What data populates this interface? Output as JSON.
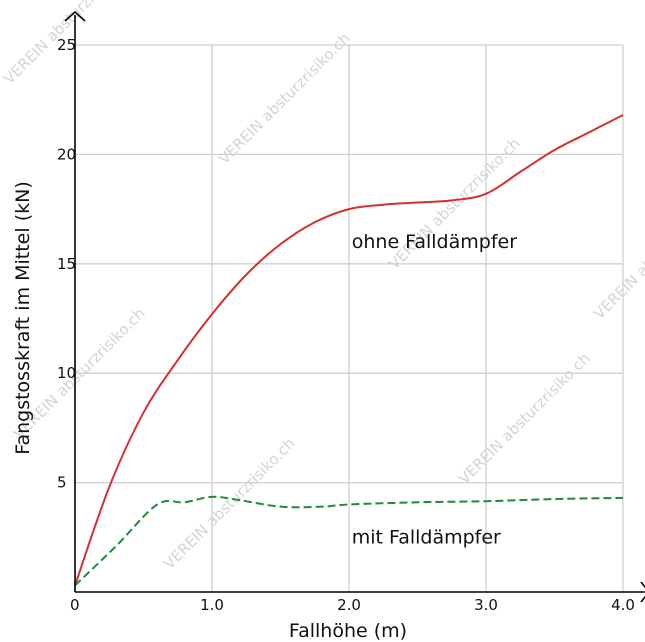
{
  "chart_data": {
    "type": "line",
    "title": "",
    "xlabel": "Fallhöhe (m)",
    "ylabel": "Fangstosskraft im Mittel (kN)",
    "xlim": [
      0,
      4.0
    ],
    "ylim": [
      0,
      25
    ],
    "x_ticks": [
      {
        "value": 0,
        "label": "0"
      },
      {
        "value": 1.0,
        "label": "1.0"
      },
      {
        "value": 2.0,
        "label": "2.0"
      },
      {
        "value": 3.0,
        "label": "3.0"
      },
      {
        "value": 4.0,
        "label": "4.0"
      }
    ],
    "y_ticks": [
      {
        "value": 5,
        "label": "5"
      },
      {
        "value": 10,
        "label": "10"
      },
      {
        "value": 15,
        "label": "15"
      },
      {
        "value": 20,
        "label": "20"
      },
      {
        "value": 25,
        "label": "25"
      }
    ],
    "grid": true,
    "series": [
      {
        "name": "ohne Falldämpfer",
        "color": "#d62f2f",
        "dash": "solid",
        "x": [
          0,
          0.25,
          0.5,
          0.75,
          1.0,
          1.25,
          1.5,
          1.75,
          2.0,
          2.25,
          2.5,
          2.75,
          3.0,
          3.25,
          3.5,
          3.75,
          4.0
        ],
        "y": [
          0.3,
          4.8,
          8.2,
          10.6,
          12.7,
          14.5,
          15.9,
          16.9,
          17.5,
          17.7,
          17.8,
          17.9,
          18.2,
          19.2,
          20.2,
          21.0,
          21.8
        ]
      },
      {
        "name": "mit Falldämpfer",
        "color": "#1f8a3a",
        "dash": "dashed",
        "x": [
          0,
          0.3,
          0.6,
          0.8,
          1.0,
          1.2,
          1.5,
          1.8,
          2.0,
          2.5,
          3.0,
          3.5,
          4.0
        ],
        "y": [
          0.3,
          2.1,
          4.0,
          4.1,
          4.35,
          4.2,
          3.9,
          3.9,
          4.0,
          4.1,
          4.15,
          4.25,
          4.3
        ]
      }
    ],
    "annotations": [
      {
        "text": "ohne Falldämpfer",
        "x": 2.02,
        "y": 16.0
      },
      {
        "text": "mit Falldämpfer",
        "x": 2.02,
        "y": 2.5
      }
    ],
    "watermark": "VEREIN absturzrisiko.ch"
  }
}
